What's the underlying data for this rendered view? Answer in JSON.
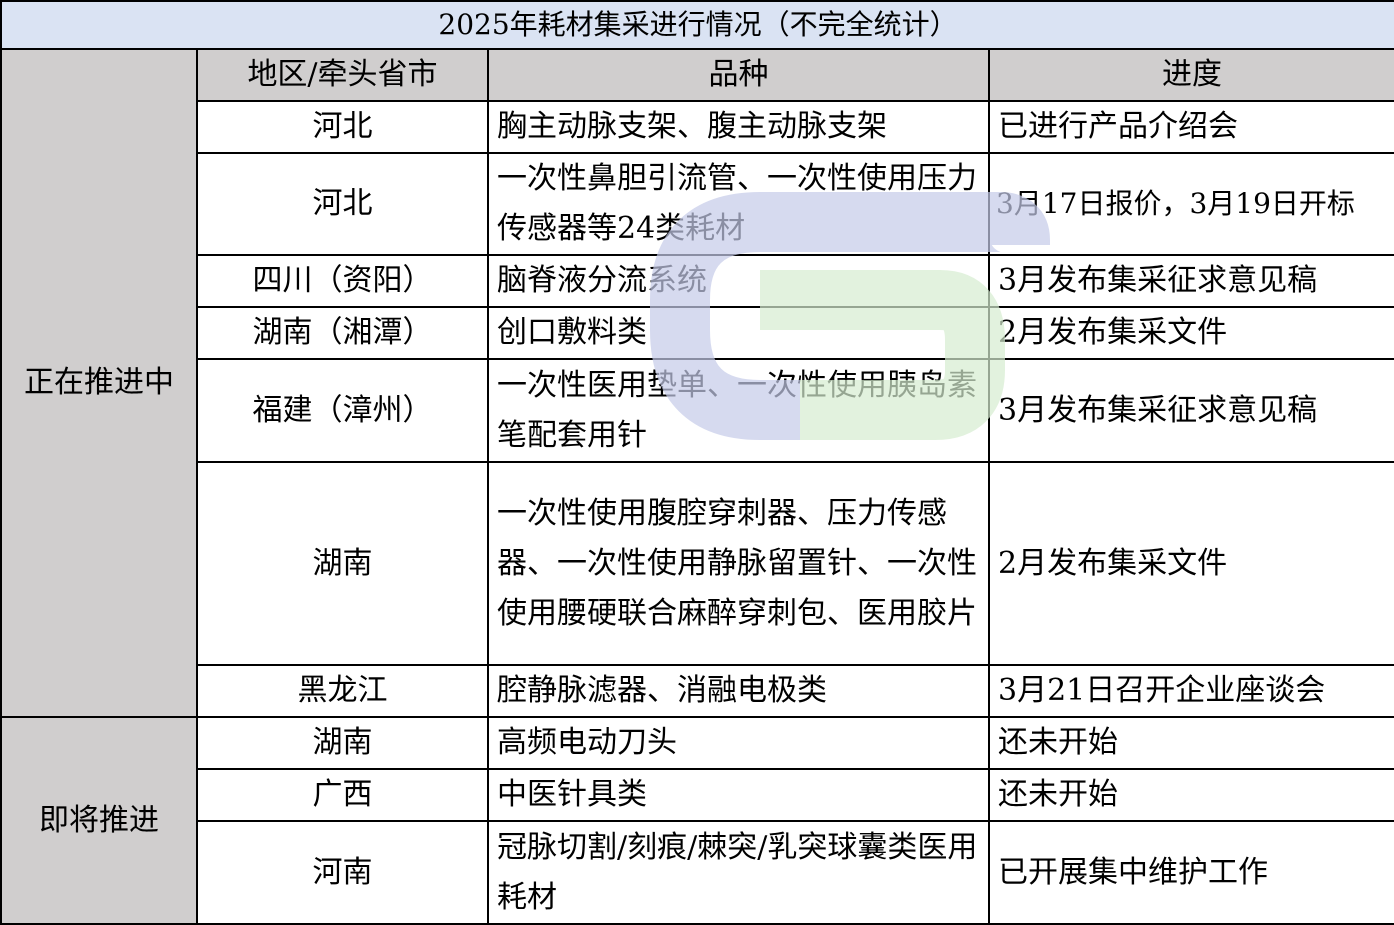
{
  "title": "2025年耗材集采进行情况（不完全统计）",
  "headers": {
    "category": "",
    "region": "地区/牵头省市",
    "variety": "品种",
    "progress": "进度"
  },
  "groups": [
    {
      "label": "正在推进中"
    },
    {
      "label": "即将推进"
    }
  ],
  "rows": [
    {
      "region": "河北",
      "variety": "胸主动脉支架、腹主动脉支架",
      "progress": "已进行产品介绍会"
    },
    {
      "region": "河北",
      "variety": "一次性鼻胆引流管、一次性使用压力传感器等24类耗材",
      "progress": "3月17日报价，3月19日开标"
    },
    {
      "region": "四川（资阳）",
      "variety": "脑脊液分流系统",
      "progress": "3月发布集采征求意见稿"
    },
    {
      "region": "湖南（湘潭）",
      "variety": "创口敷料类",
      "progress": "2月发布集采文件"
    },
    {
      "region": "福建（漳州）",
      "variety": "一次性医用垫单、一次性使用胰岛素笔配套用针",
      "progress": "3月发布集采征求意见稿"
    },
    {
      "region": "湖南",
      "variety": "一次性使用腹腔穿刺器、压力传感器、一次性使用静脉留置针、一次性使用腰硬联合麻醉穿刺包、医用胶片",
      "progress": "2月发布集采文件"
    },
    {
      "region": "黑龙江",
      "variety": "腔静脉滤器、消融电极类",
      "progress": "3月21日召开企业座谈会"
    },
    {
      "region": "湖南",
      "variety": "高频电动刀头",
      "progress": "还未开始"
    },
    {
      "region": "广西",
      "variety": "中医针具类",
      "progress": "还未开始"
    },
    {
      "region": "河南",
      "variety": "冠脉切割/刻痕/棘突/乳突球囊类医用耗材",
      "progress": "已开展集中维护工作"
    }
  ],
  "colors": {
    "title_bg": "#dae3f3",
    "header_bg": "#d0cece",
    "watermark_blue": "#c5cbe8",
    "watermark_green": "#d5ecd0"
  }
}
